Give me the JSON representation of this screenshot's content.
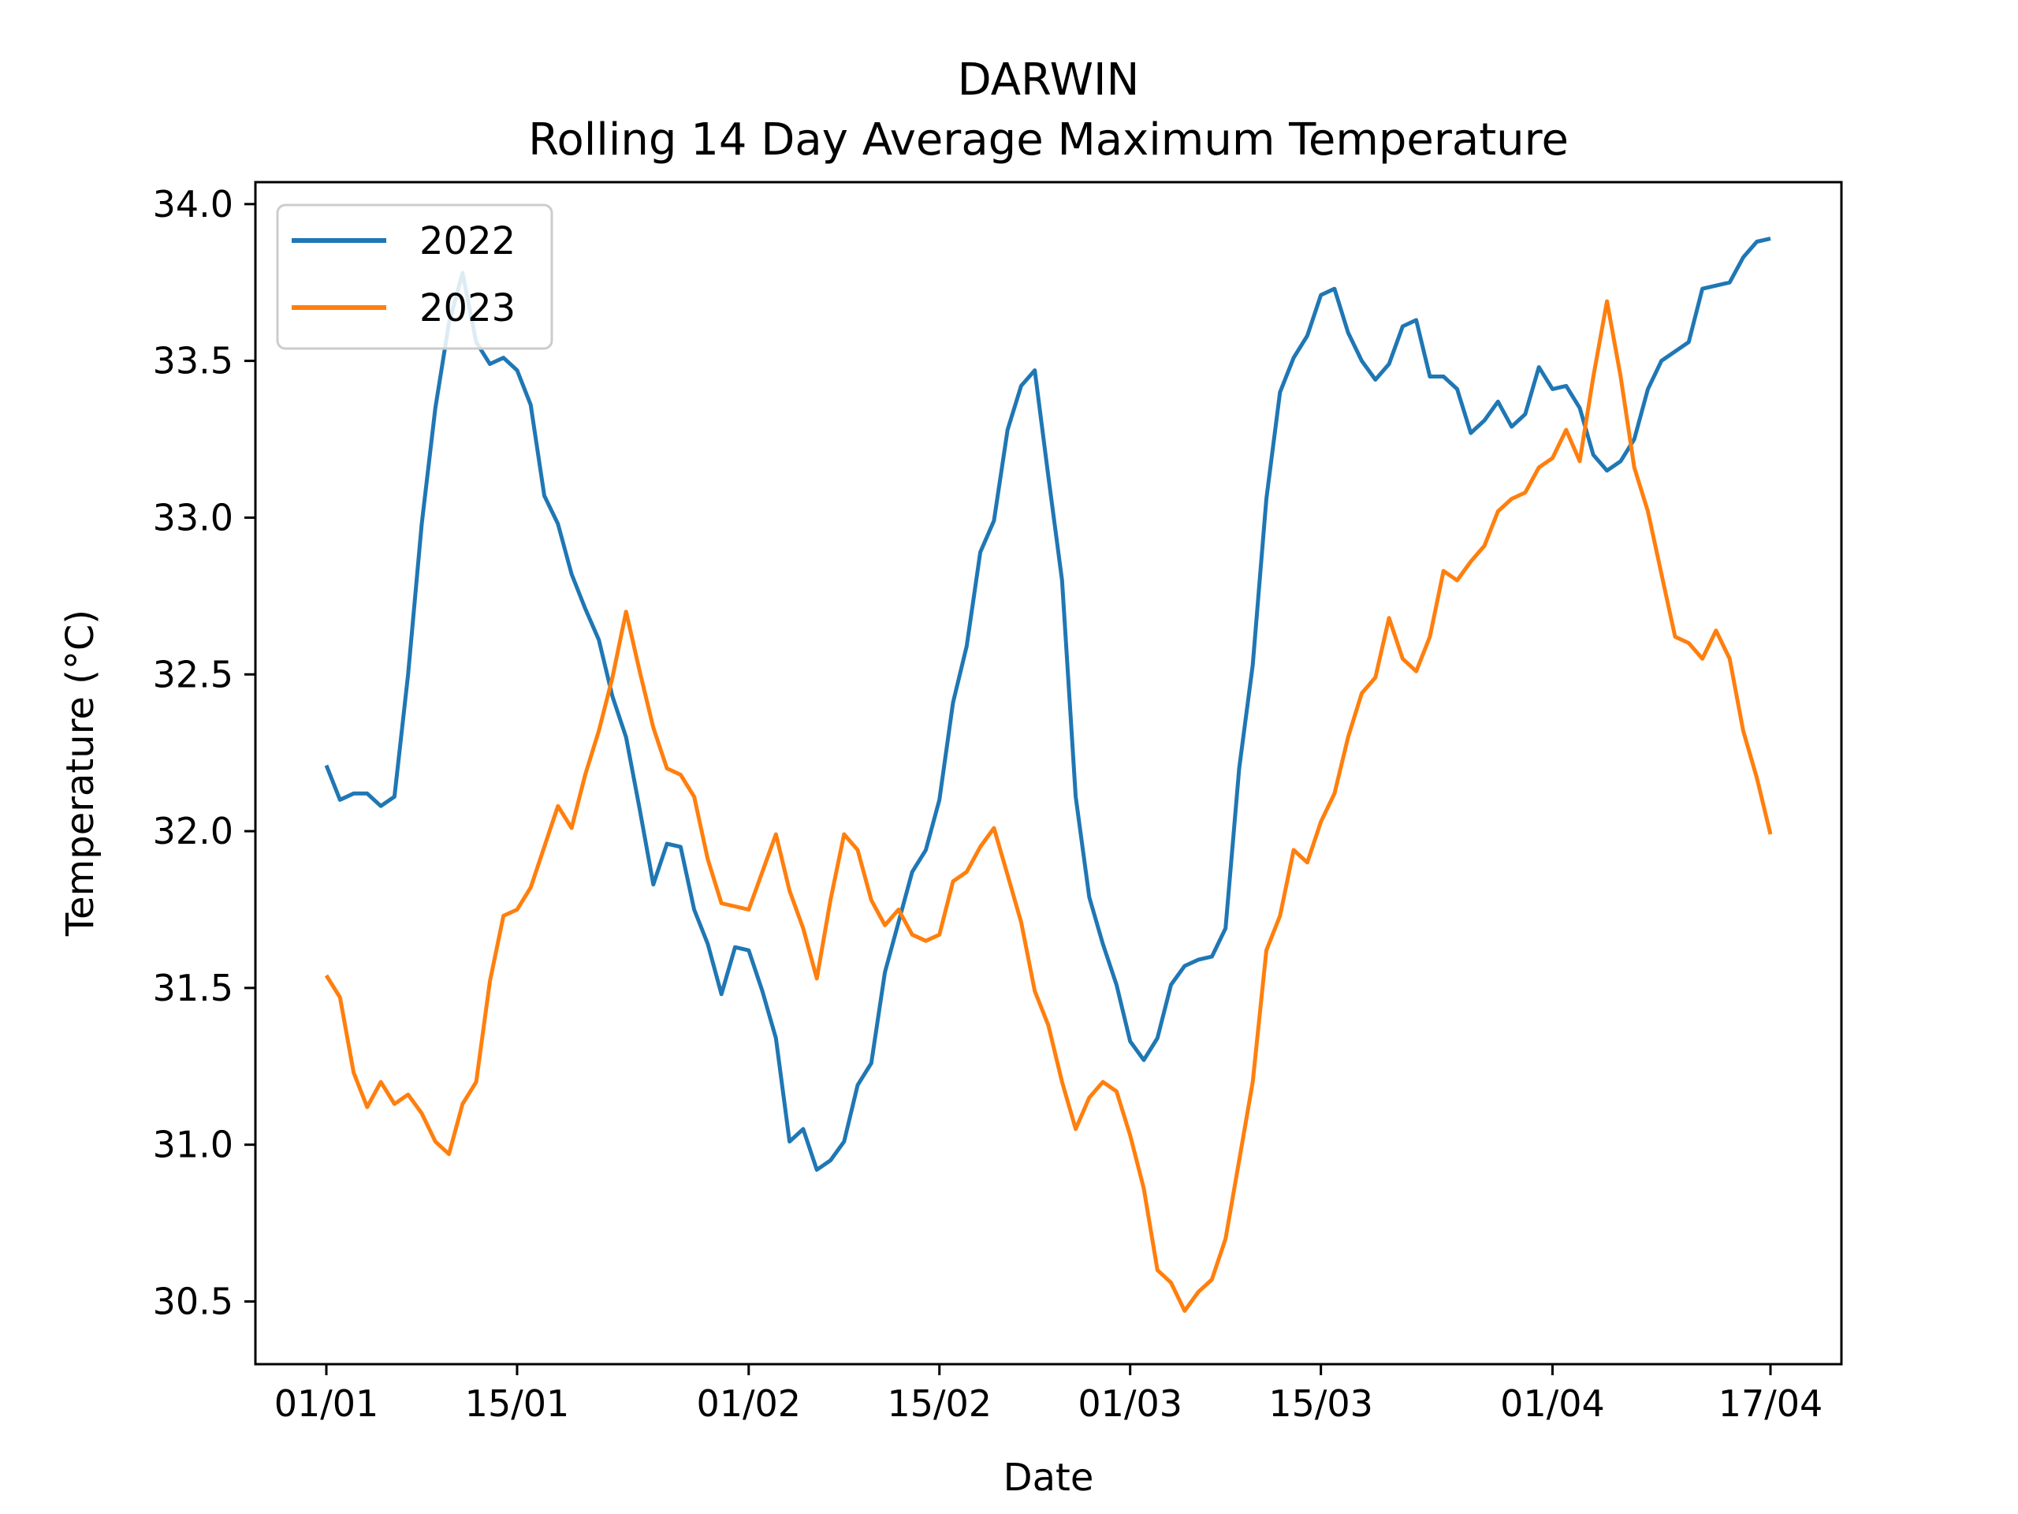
{
  "chart_data": {
    "type": "line",
    "title": "DARWIN",
    "subtitle": "Rolling 14 Day Average Maximum Temperature",
    "xlabel": "Date",
    "ylabel": "Temperature (°C)",
    "x_range": [
      "01/01",
      "17/04"
    ],
    "ylim": [
      30.3,
      34.07
    ],
    "x_ticks": [
      {
        "label": "01/01",
        "day": 0
      },
      {
        "label": "15/01",
        "day": 14
      },
      {
        "label": "01/02",
        "day": 31
      },
      {
        "label": "15/02",
        "day": 45
      },
      {
        "label": "01/03",
        "day": 59
      },
      {
        "label": "15/03",
        "day": 73
      },
      {
        "label": "01/04",
        "day": 90
      },
      {
        "label": "17/04",
        "day": 106
      }
    ],
    "y_ticks": [
      30.5,
      31.0,
      31.5,
      32.0,
      32.5,
      33.0,
      33.5,
      34.0
    ],
    "y_tick_labels": [
      "30.5",
      "31.0",
      "31.5",
      "32.0",
      "32.5",
      "33.0",
      "33.5",
      "34.0"
    ],
    "grid": false,
    "legend_position": "top-left",
    "series": [
      {
        "name": "2022",
        "color": "#1f77b4",
        "values": [
          32.21,
          32.1,
          32.12,
          32.12,
          32.08,
          32.11,
          32.5,
          32.98,
          33.35,
          33.62,
          33.78,
          33.56,
          33.49,
          33.51,
          33.47,
          33.36,
          33.07,
          32.98,
          32.82,
          32.71,
          32.61,
          32.43,
          32.3,
          32.07,
          31.83,
          31.96,
          31.95,
          31.75,
          31.64,
          31.48,
          31.63,
          31.62,
          31.49,
          31.34,
          31.01,
          31.05,
          30.92,
          30.95,
          31.01,
          31.19,
          31.26,
          31.55,
          31.71,
          31.87,
          31.94,
          32.1,
          32.41,
          32.59,
          32.89,
          32.99,
          33.28,
          33.42,
          33.47,
          33.13,
          32.8,
          32.11,
          31.79,
          31.64,
          31.51,
          31.33,
          31.27,
          31.34,
          31.51,
          31.57,
          31.59,
          31.6,
          31.69,
          32.2,
          32.53,
          33.06,
          33.4,
          33.51,
          33.58,
          33.71,
          33.73,
          33.59,
          33.5,
          33.44,
          33.49,
          33.61,
          33.63,
          33.45,
          33.45,
          33.41,
          33.27,
          33.31,
          33.37,
          33.29,
          33.33,
          33.48,
          33.41,
          33.42,
          33.35,
          33.2,
          33.15,
          33.18,
          33.25,
          33.41,
          33.5,
          33.53,
          33.56,
          33.73,
          33.74,
          33.75,
          33.83,
          33.88,
          33.89
        ]
      },
      {
        "name": "2023",
        "color": "#ff7f0e",
        "values": [
          31.54,
          31.47,
          31.23,
          31.12,
          31.2,
          31.13,
          31.16,
          31.1,
          31.01,
          30.97,
          31.13,
          31.2,
          31.52,
          31.73,
          31.75,
          31.82,
          31.95,
          32.08,
          32.01,
          32.18,
          32.32,
          32.49,
          32.7,
          32.51,
          32.33,
          32.2,
          32.18,
          32.11,
          31.91,
          31.77,
          31.76,
          31.75,
          31.87,
          31.99,
          31.81,
          31.69,
          31.53,
          31.78,
          31.99,
          31.94,
          31.78,
          31.7,
          31.75,
          31.67,
          31.65,
          31.67,
          31.84,
          31.87,
          31.95,
          32.01,
          31.86,
          31.71,
          31.49,
          31.38,
          31.2,
          31.05,
          31.15,
          31.2,
          31.17,
          31.03,
          30.86,
          30.6,
          30.56,
          30.47,
          30.53,
          30.57,
          30.7,
          30.95,
          31.2,
          31.62,
          31.73,
          31.94,
          31.9,
          32.03,
          32.12,
          32.3,
          32.44,
          32.49,
          32.68,
          32.55,
          32.51,
          32.62,
          32.83,
          32.8,
          32.86,
          32.91,
          33.02,
          33.06,
          33.08,
          33.16,
          33.19,
          33.28,
          33.18,
          33.45,
          33.69,
          33.45,
          33.16,
          33.02,
          32.82,
          32.62,
          32.6,
          32.55,
          32.64,
          32.55,
          32.32,
          32.17,
          31.99
        ]
      }
    ]
  }
}
